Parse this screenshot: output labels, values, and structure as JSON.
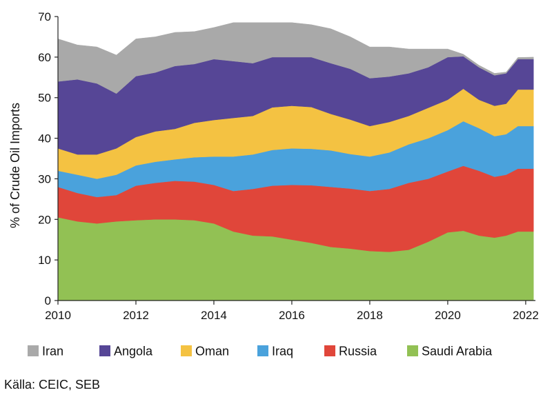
{
  "chart_data": {
    "type": "area",
    "stacked": true,
    "title": "",
    "xlabel": "",
    "ylabel": "% of Crude Oil Imports",
    "xlim": [
      2010,
      2022.25
    ],
    "ylim": [
      0,
      70
    ],
    "x_ticks": [
      2010,
      2012,
      2014,
      2016,
      2018,
      2020,
      2022
    ],
    "y_ticks": [
      0,
      10,
      20,
      30,
      40,
      50,
      60,
      70
    ],
    "grid": false,
    "legend_position": "bottom",
    "x": [
      2010.0,
      2010.5,
      2011.0,
      2011.5,
      2012.0,
      2012.5,
      2013.0,
      2013.5,
      2014.0,
      2014.5,
      2015.0,
      2015.5,
      2016.0,
      2016.5,
      2017.0,
      2017.5,
      2018.0,
      2018.5,
      2019.0,
      2019.5,
      2020.0,
      2020.4,
      2020.8,
      2021.2,
      2021.5,
      2021.8,
      2022.2
    ],
    "series": [
      {
        "name": "Saudi Arabia",
        "color": "#92c154",
        "values": [
          20.5,
          19.5,
          19.0,
          19.5,
          19.8,
          20.0,
          20.0,
          19.8,
          19.0,
          17.0,
          16.0,
          15.8,
          15.0,
          14.2,
          13.2,
          12.8,
          12.2,
          12.0,
          12.5,
          14.5,
          16.8,
          17.2,
          16.0,
          15.5,
          16.0,
          17.0,
          17.0
        ]
      },
      {
        "name": "Russia",
        "color": "#e0463a",
        "values": [
          7.5,
          7.0,
          6.5,
          6.5,
          8.5,
          9.0,
          9.5,
          9.5,
          9.5,
          10.0,
          11.5,
          12.5,
          13.5,
          14.2,
          14.8,
          14.8,
          14.8,
          15.5,
          16.5,
          15.5,
          15.0,
          16.0,
          16.0,
          15.0,
          15.0,
          15.5,
          15.5
        ]
      },
      {
        "name": "Iraq",
        "color": "#4aa2dc",
        "values": [
          4.0,
          4.5,
          4.5,
          5.0,
          5.0,
          5.2,
          5.3,
          6.0,
          7.0,
          8.5,
          8.5,
          8.8,
          9.0,
          9.0,
          9.0,
          8.5,
          8.5,
          9.0,
          9.5,
          10.0,
          10.2,
          11.0,
          10.5,
          10.0,
          10.0,
          10.5,
          10.5
        ]
      },
      {
        "name": "Oman",
        "color": "#f4c242",
        "values": [
          5.5,
          5.0,
          6.0,
          6.5,
          7.0,
          7.5,
          7.5,
          8.5,
          9.0,
          9.5,
          9.5,
          10.5,
          10.5,
          10.3,
          9.0,
          8.5,
          7.5,
          7.5,
          7.0,
          7.5,
          7.5,
          8.0,
          7.0,
          7.5,
          7.5,
          9.0,
          9.0
        ]
      },
      {
        "name": "Angola",
        "color": "#564696",
        "values": [
          16.5,
          18.5,
          17.5,
          13.5,
          15.0,
          14.5,
          15.5,
          14.5,
          15.0,
          14.0,
          13.0,
          12.4,
          12.0,
          12.3,
          12.5,
          12.5,
          11.8,
          11.2,
          10.5,
          10.0,
          10.5,
          8.0,
          8.0,
          7.5,
          7.5,
          7.5,
          7.5
        ]
      },
      {
        "name": "Iran",
        "color": "#a9a9a9",
        "values": [
          10.5,
          8.5,
          9.0,
          9.5,
          9.2,
          8.8,
          8.3,
          8.0,
          7.8,
          9.5,
          10.0,
          8.5,
          8.5,
          8.0,
          8.5,
          7.9,
          7.7,
          7.3,
          6.0,
          4.5,
          2.0,
          0.5,
          0.5,
          0.5,
          0.3,
          0.4,
          0.5
        ]
      }
    ]
  },
  "legend": {
    "items": [
      {
        "label": "Iran",
        "color": "#a9a9a9"
      },
      {
        "label": "Angola",
        "color": "#564696"
      },
      {
        "label": "Oman",
        "color": "#f4c242"
      },
      {
        "label": "Iraq",
        "color": "#4aa2dc"
      },
      {
        "label": "Russia",
        "color": "#e0463a"
      },
      {
        "label": "Saudi Arabia",
        "color": "#92c154"
      }
    ]
  },
  "source": "Källa: CEIC, SEB"
}
